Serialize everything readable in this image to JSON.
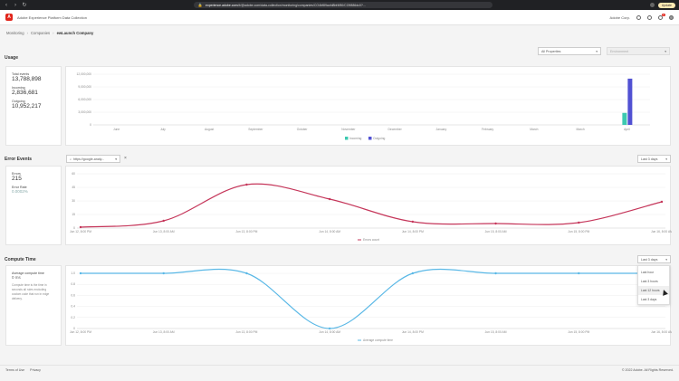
{
  "browser": {
    "url_host": "experience.adobe.com",
    "url_rest": "/#/@adobe.com/data-collection/monitoring/companies/CO4bf89acfd8bf4f80/CO9886dc0?...",
    "update_label": "Update"
  },
  "app": {
    "title": "Adobe Experience Platform Data Collection",
    "org": "Adobe Corp."
  },
  "breadcrumb": [
    "Monitoring",
    "Companies",
    "ewLaunch Company"
  ],
  "usage": {
    "title": "Usage",
    "property_select": "All Properties",
    "env_select": "Environment",
    "stats": [
      {
        "label": "Total events",
        "value": "13,788,898"
      },
      {
        "label": "Incoming",
        "value": "2,836,681"
      },
      {
        "label": "Outgoing",
        "value": "10,952,217"
      }
    ]
  },
  "errors": {
    "title": "Error Events",
    "filter_text": "https://google-analy...",
    "range_select": "Last 3 days",
    "stats": [
      {
        "label": "Errors",
        "value": "215"
      },
      {
        "label": "Error Rate",
        "value": "0.0002%"
      }
    ]
  },
  "compute": {
    "title": "Compute Time",
    "range_select": "Last 3 days",
    "stat_label": "Average compute time",
    "stat_value": "0 ms",
    "note": "Compute time is the time in seconds all rules excluding custom code that run in edge delivery.",
    "menu_items": [
      "Last hour",
      "Last 3 hours",
      "Last 12 hours",
      "Last 3 days"
    ]
  },
  "footer": {
    "links": [
      "Terms of Use",
      "Privacy"
    ],
    "copyright": "© 2022 Adobe. All Rights Reserved."
  },
  "colors": {
    "incoming": "#3dc9b0",
    "outgoing": "#5151d3",
    "errors": "#c5365a",
    "compute": "#5ab8e6"
  },
  "chart_data": [
    {
      "type": "bar",
      "title": "",
      "categories": [
        "June",
        "July",
        "August",
        "September",
        "October",
        "November",
        "December",
        "January",
        "February",
        "March",
        "March",
        "April"
      ],
      "series": [
        {
          "name": "Incoming",
          "values": [
            0,
            0,
            0,
            0,
            0,
            0,
            0,
            0,
            0,
            0,
            0,
            2836681
          ]
        },
        {
          "name": "Outgoing",
          "values": [
            0,
            0,
            0,
            0,
            0,
            0,
            0,
            0,
            0,
            0,
            0,
            10952217
          ]
        }
      ],
      "yticks": [
        "12,000,000",
        "9,000,000",
        "6,000,000",
        "3,000,000",
        "0"
      ],
      "ylim": [
        0,
        12000000
      ],
      "legend": "bottom-center",
      "grid": true
    },
    {
      "type": "line",
      "title": "",
      "x": [
        "Jun 12, 8:00 PM",
        "Jun 13, 8:00 AM",
        "Jun 13, 8:00 PM",
        "Jun 14, 8:00 AM",
        "Jun 14, 8:00 PM",
        "Jun 15, 8:00 AM",
        "Jun 15, 8:00 PM",
        "Jun 16, 8:00 AM"
      ],
      "series": [
        {
          "name": "Errors count",
          "values": [
            1,
            8,
            48,
            32,
            7,
            5,
            6,
            29
          ]
        }
      ],
      "yticks": [
        "60",
        "45",
        "30",
        "15",
        "0"
      ],
      "ylim": [
        0,
        60
      ],
      "legend": "bottom-center",
      "grid": true
    },
    {
      "type": "line",
      "title": "",
      "x": [
        "Jun 12, 8:00 PM",
        "Jun 13, 8:00 AM",
        "Jun 13, 8:00 PM",
        "Jun 14, 8:00 AM",
        "Jun 14, 8:00 PM",
        "Jun 15, 8:00 AM",
        "Jun 15, 8:00 PM",
        "Jun 16, 8:00 AM"
      ],
      "series": [
        {
          "name": "Average compute time",
          "values": [
            1,
            1,
            1,
            0,
            1,
            1,
            1,
            1
          ]
        }
      ],
      "yticks": [
        "1.0",
        "0.8",
        "0.6",
        "0.4",
        "0.2",
        "0"
      ],
      "ylim": [
        0,
        1
      ],
      "legend": "bottom-center",
      "grid": true
    }
  ]
}
